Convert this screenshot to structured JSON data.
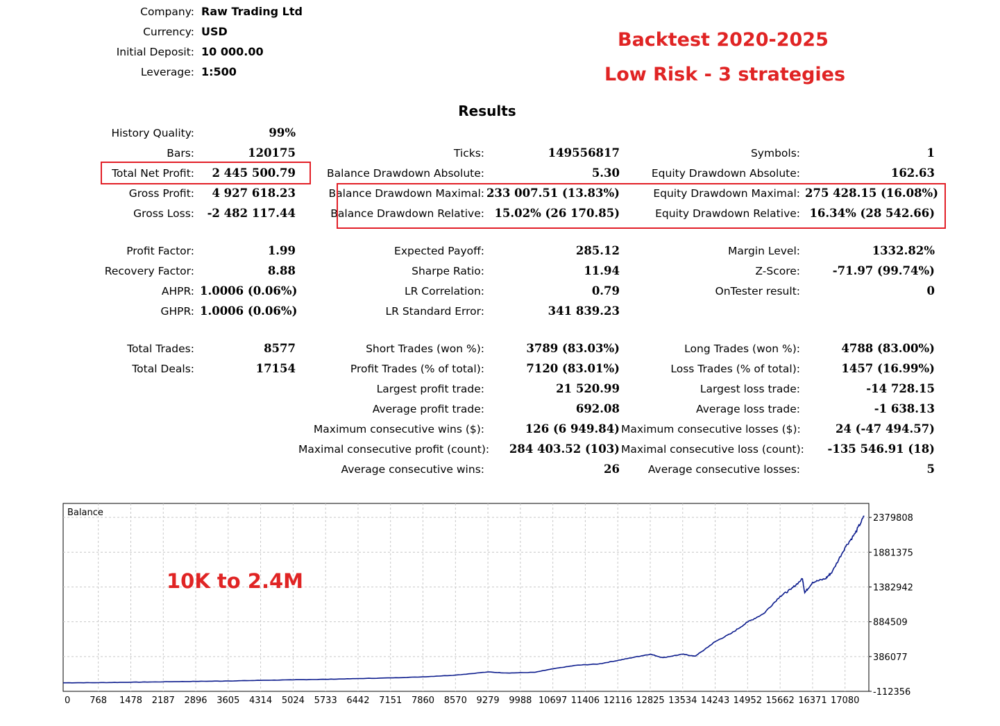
{
  "header": {
    "company_label": "Company:",
    "company": "Raw Trading Ltd",
    "currency_label": "Currency:",
    "currency": "USD",
    "deposit_label": "Initial Deposit:",
    "deposit": "10 000.00",
    "leverage_label": "Leverage:",
    "leverage": "1:500"
  },
  "banner": {
    "line1": "Backtest 2020-2025",
    "line2": "Low Risk - 3 strategies"
  },
  "results_title": "Results",
  "col1": [
    {
      "label": "History Quality:",
      "value": "99%"
    },
    {
      "label": "Bars:",
      "value": "120175"
    },
    {
      "label": "Total Net Profit:",
      "value": "2 445 500.79"
    },
    {
      "label": "Gross Profit:",
      "value": "4 927 618.23"
    },
    {
      "label": "Gross Loss:",
      "value": "-2 482 117.44"
    },
    {
      "label": "Profit Factor:",
      "value": "1.99"
    },
    {
      "label": "Recovery Factor:",
      "value": "8.88"
    },
    {
      "label": "AHPR:",
      "value": "1.0006 (0.06%)"
    },
    {
      "label": "GHPR:",
      "value": "1.0006 (0.06%)"
    },
    {
      "label": "Total Trades:",
      "value": "8577"
    },
    {
      "label": "Total Deals:",
      "value": "17154"
    }
  ],
  "col2": [
    {
      "label": "Ticks:",
      "value": "149556817"
    },
    {
      "label": "Balance Drawdown Absolute:",
      "value": "5.30"
    },
    {
      "label": "Balance Drawdown Maximal:",
      "value": "233 007.51 (13.83%)"
    },
    {
      "label": "Balance Drawdown Relative:",
      "value": "15.02% (26 170.85)"
    },
    {
      "label": "Expected Payoff:",
      "value": "285.12"
    },
    {
      "label": "Sharpe Ratio:",
      "value": "11.94"
    },
    {
      "label": "LR Correlation:",
      "value": "0.79"
    },
    {
      "label": "LR Standard Error:",
      "value": "341 839.23"
    },
    {
      "label": "Short Trades (won %):",
      "value": "3789 (83.03%)"
    },
    {
      "label": "Profit Trades (% of total):",
      "value": "7120 (83.01%)"
    },
    {
      "label": "Largest profit trade:",
      "value": "21 520.99"
    },
    {
      "label": "Average profit trade:",
      "value": "692.08"
    },
    {
      "label": "Maximum consecutive wins ($):",
      "value": "126 (6 949.84)"
    },
    {
      "label": "Maximal consecutive profit (count):",
      "value": "284 403.52 (103)"
    },
    {
      "label": "Average consecutive wins:",
      "value": "26"
    }
  ],
  "col3": [
    {
      "label": "Symbols:",
      "value": "1"
    },
    {
      "label": "Equity Drawdown Absolute:",
      "value": "162.63"
    },
    {
      "label": "Equity Drawdown Maximal:",
      "value": "275 428.15 (16.08%)"
    },
    {
      "label": "Equity Drawdown Relative:",
      "value": "16.34% (28 542.66)"
    },
    {
      "label": "Margin Level:",
      "value": "1332.82%"
    },
    {
      "label": "Z-Score:",
      "value": "-71.97 (99.74%)"
    },
    {
      "label": "OnTester result:",
      "value": "0"
    },
    {
      "label": "Long Trades (won %):",
      "value": "4788 (83.00%)"
    },
    {
      "label": "Loss Trades (% of total):",
      "value": "1457 (16.99%)"
    },
    {
      "label": "Largest loss trade:",
      "value": "-14 728.15"
    },
    {
      "label": "Average loss trade:",
      "value": "-1 638.13"
    },
    {
      "label": "Maximum consecutive losses ($):",
      "value": "24 (-47 494.57)"
    },
    {
      "label": "Maximal consecutive loss (count):",
      "value": "-135 546.91 (18)"
    },
    {
      "label": "Average consecutive losses:",
      "value": "5"
    }
  ],
  "colors": {
    "highlight": "#e21e26",
    "line": "#0a1a8c",
    "grid": "#c8c8c8"
  },
  "chart_data": {
    "type": "line",
    "title": "Balance",
    "annotation": "10K to 2.4M",
    "xlabel": "",
    "ylabel": "",
    "x_ticks": [
      "0",
      "768",
      "1478",
      "2187",
      "2896",
      "3605",
      "4314",
      "5024",
      "5733",
      "6442",
      "7151",
      "7860",
      "8570",
      "9279",
      "9988",
      "10697",
      "11406",
      "12116",
      "12825",
      "13534",
      "14243",
      "14952",
      "15662",
      "16371",
      "17080"
    ],
    "y_ticks": [
      "2379808",
      "1881375",
      "1382942",
      "884509",
      "386077",
      "-112356"
    ],
    "xlim": [
      0,
      17600
    ],
    "ylim": [
      -112356,
      2580000
    ],
    "grid": true,
    "series": [
      {
        "values": [
          [
            0,
            10000
          ],
          [
            768,
            12000
          ],
          [
            1478,
            18000
          ],
          [
            2187,
            24000
          ],
          [
            2896,
            30000
          ],
          [
            3605,
            36000
          ],
          [
            4314,
            45000
          ],
          [
            5024,
            52000
          ],
          [
            5733,
            60000
          ],
          [
            6442,
            70000
          ],
          [
            7151,
            80000
          ],
          [
            7860,
            95000
          ],
          [
            8570,
            120000
          ],
          [
            9279,
            165000
          ],
          [
            9700,
            150000
          ],
          [
            10300,
            160000
          ],
          [
            10697,
            210000
          ],
          [
            11200,
            260000
          ],
          [
            11700,
            280000
          ],
          [
            12116,
            330000
          ],
          [
            12500,
            380000
          ],
          [
            12825,
            420000
          ],
          [
            13100,
            370000
          ],
          [
            13534,
            420000
          ],
          [
            13800,
            390000
          ],
          [
            14000,
            480000
          ],
          [
            14243,
            600000
          ],
          [
            14600,
            720000
          ],
          [
            14952,
            880000
          ],
          [
            15300,
            1000000
          ],
          [
            15662,
            1250000
          ],
          [
            15900,
            1350000
          ],
          [
            16150,
            1500000
          ],
          [
            16200,
            1300000
          ],
          [
            16371,
            1450000
          ],
          [
            16650,
            1500000
          ],
          [
            16800,
            1600000
          ],
          [
            17080,
            1950000
          ],
          [
            17300,
            2150000
          ],
          [
            17500,
            2400000
          ]
        ]
      }
    ]
  }
}
